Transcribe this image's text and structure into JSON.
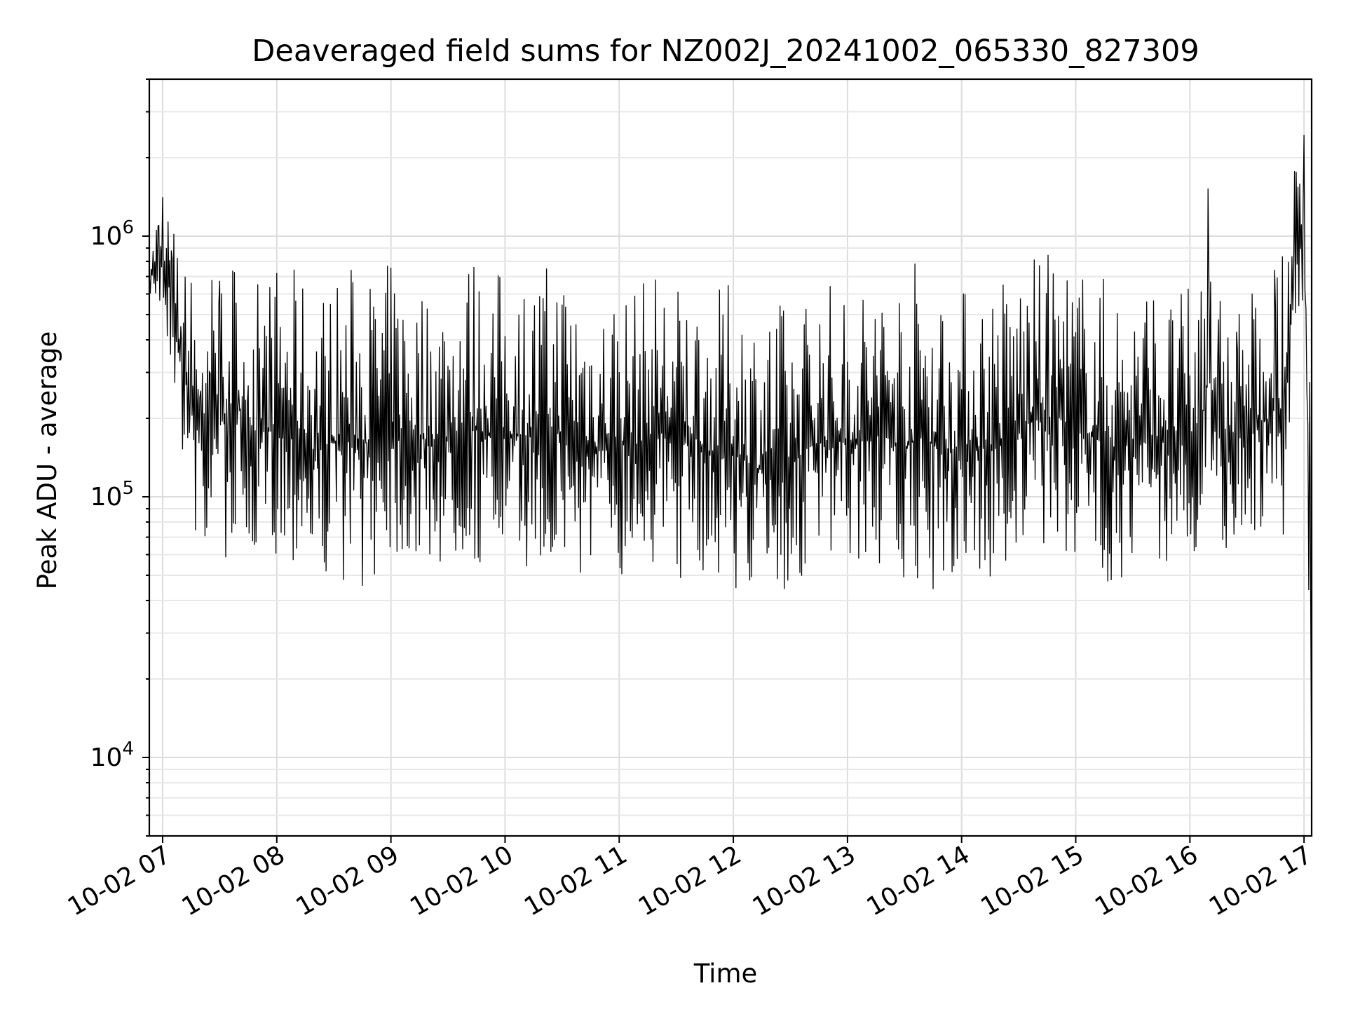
{
  "chart_data": {
    "type": "line",
    "title": "Deaveraged field sums for NZ002J_20241002_065330_827309",
    "xlabel": "Time",
    "ylabel": "Peak ADU - average",
    "yscale": "log",
    "grid": true,
    "ylim": [
      5000,
      4000000
    ],
    "xlim": [
      "2024-10-02 06:53",
      "2024-10-02 17:04"
    ],
    "x_ticks": [
      {
        "label": "10-02 07",
        "value": "2024-10-02 07:00"
      },
      {
        "label": "10-02 08",
        "value": "2024-10-02 08:00"
      },
      {
        "label": "10-02 09",
        "value": "2024-10-02 09:00"
      },
      {
        "label": "10-02 10",
        "value": "2024-10-02 10:00"
      },
      {
        "label": "10-02 11",
        "value": "2024-10-02 11:00"
      },
      {
        "label": "10-02 12",
        "value": "2024-10-02 12:00"
      },
      {
        "label": "10-02 13",
        "value": "2024-10-02 13:00"
      },
      {
        "label": "10-02 14",
        "value": "2024-10-02 14:00"
      },
      {
        "label": "10-02 15",
        "value": "2024-10-02 15:00"
      },
      {
        "label": "10-02 16",
        "value": "2024-10-02 16:00"
      },
      {
        "label": "10-02 17",
        "value": "2024-10-02 17:00"
      }
    ],
    "y_ticks": [
      {
        "base": "10",
        "exp": "4",
        "value": 10000
      },
      {
        "base": "10",
        "exp": "5",
        "value": 100000
      },
      {
        "base": "10",
        "exp": "6",
        "value": 1000000
      }
    ],
    "line_color": "#000000",
    "series": [
      {
        "x": [
          "2024-10-02 06:53",
          "2024-10-02 06:55",
          "2024-10-02 06:58",
          "2024-10-02 07:00",
          "2024-10-02 07:02",
          "2024-10-02 07:05",
          "2024-10-02 07:10",
          "2024-10-02 07:15",
          "2024-10-02 07:20",
          "2024-10-02 07:25",
          "2024-10-02 07:30",
          "2024-10-02 07:35",
          "2024-10-02 07:40",
          "2024-10-02 07:45",
          "2024-10-02 07:50",
          "2024-10-02 08:00",
          "2024-10-02 08:10",
          "2024-10-02 08:20",
          "2024-10-02 08:30",
          "2024-10-02 08:40",
          "2024-10-02 08:50",
          "2024-10-02 09:00",
          "2024-10-02 09:10",
          "2024-10-02 09:20",
          "2024-10-02 09:30",
          "2024-10-02 09:40",
          "2024-10-02 09:50",
          "2024-10-02 10:00",
          "2024-10-02 10:10",
          "2024-10-02 10:20",
          "2024-10-02 10:30",
          "2024-10-02 10:40",
          "2024-10-02 10:50",
          "2024-10-02 11:00",
          "2024-10-02 11:10",
          "2024-10-02 11:20",
          "2024-10-02 11:30",
          "2024-10-02 11:40",
          "2024-10-02 11:50",
          "2024-10-02 12:00",
          "2024-10-02 12:10",
          "2024-10-02 12:20",
          "2024-10-02 12:30",
          "2024-10-02 12:40",
          "2024-10-02 12:50",
          "2024-10-02 13:00",
          "2024-10-02 13:10",
          "2024-10-02 13:20",
          "2024-10-02 13:30",
          "2024-10-02 13:40",
          "2024-10-02 13:50",
          "2024-10-02 14:00",
          "2024-10-02 14:10",
          "2024-10-02 14:20",
          "2024-10-02 14:30",
          "2024-10-02 14:40",
          "2024-10-02 14:50",
          "2024-10-02 15:00",
          "2024-10-02 15:10",
          "2024-10-02 15:20",
          "2024-10-02 15:30",
          "2024-10-02 15:40",
          "2024-10-02 15:50",
          "2024-10-02 16:00",
          "2024-10-02 16:05",
          "2024-10-02 16:10",
          "2024-10-02 16:15",
          "2024-10-02 16:20",
          "2024-10-02 16:25",
          "2024-10-02 16:30",
          "2024-10-02 16:35",
          "2024-10-02 16:40",
          "2024-10-02 16:45",
          "2024-10-02 16:50",
          "2024-10-02 16:55",
          "2024-10-02 17:00",
          "2024-10-02 17:02",
          "2024-10-02 17:04"
        ],
        "low": [
          600000,
          550000,
          500000,
          450000,
          400000,
          300000,
          150000,
          70000,
          60000,
          60000,
          55000,
          60000,
          70000,
          60000,
          55000,
          60000,
          55000,
          45000,
          50000,
          45000,
          45000,
          60000,
          50000,
          55000,
          50000,
          55000,
          50000,
          50000,
          55000,
          45000,
          50000,
          45000,
          50000,
          50000,
          50000,
          55000,
          45000,
          55000,
          45000,
          45000,
          40000,
          35000,
          40000,
          50000,
          50000,
          55000,
          55000,
          50000,
          40000,
          45000,
          40000,
          50000,
          45000,
          45000,
          55000,
          60000,
          60000,
          55000,
          50000,
          45000,
          50000,
          55000,
          55000,
          50000,
          55000,
          55000,
          60000,
          60000,
          60000,
          65000,
          70000,
          65000,
          75000,
          70000,
          300000,
          450000,
          25000,
          6500
        ],
        "high": [
          900000,
          1000000,
          1500000,
          2000000,
          1500000,
          1200000,
          900000,
          800000,
          700000,
          750000,
          900000,
          1000000,
          900000,
          850000,
          700000,
          800000,
          750000,
          650000,
          700000,
          800000,
          750000,
          800000,
          700000,
          650000,
          700000,
          900000,
          800000,
          750000,
          700000,
          800000,
          850000,
          750000,
          600000,
          700000,
          650000,
          800000,
          700000,
          650000,
          600000,
          700000,
          550000,
          600000,
          550000,
          650000,
          700000,
          600000,
          700000,
          750000,
          800000,
          900000,
          700000,
          650000,
          700000,
          750000,
          800000,
          850000,
          900000,
          800000,
          750000,
          700000,
          650000,
          700000,
          600000,
          650000,
          700000,
          2600000,
          700000,
          600000,
          650000,
          600000,
          700000,
          750000,
          800000,
          850000,
          2000000,
          2800000,
          1500000,
          150000
        ]
      }
    ]
  }
}
